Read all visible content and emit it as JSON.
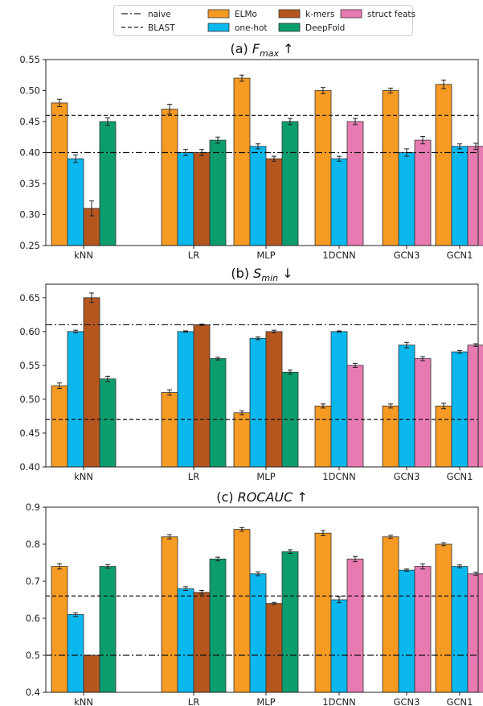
{
  "legend": [
    {
      "label": "naive",
      "kind": "line",
      "dash": "dashdot"
    },
    {
      "label": "BLAST",
      "kind": "line",
      "dash": "dashed"
    },
    {
      "label": "ELMo",
      "kind": "patch",
      "color": "#f59a23"
    },
    {
      "label": "one-hot",
      "kind": "patch",
      "color": "#0ab8ee"
    },
    {
      "label": "k-mers",
      "kind": "patch",
      "color": "#b5561f"
    },
    {
      "label": "DeepFold",
      "kind": "patch",
      "color": "#0c9d6e"
    },
    {
      "label": "struct feats",
      "kind": "patch",
      "color": "#e87ab2"
    }
  ],
  "chart_data": [
    {
      "type": "bar",
      "title": {
        "prefix": "(a)",
        "var": "F",
        "sub": "max",
        "arrow": "↑"
      },
      "categories": [
        "kNN",
        "LR",
        "MLP",
        "1DCNN",
        "GCN3",
        "GCN1"
      ],
      "ylim": [
        0.25,
        0.55
      ],
      "yticks": [
        "0.25",
        "0.30",
        "0.35",
        "0.40",
        "0.45",
        "0.50",
        "0.55"
      ],
      "ytick_values": [
        0.25,
        0.3,
        0.35,
        0.4,
        0.45,
        0.5,
        0.55
      ],
      "reference_lines": [
        {
          "name": "naive",
          "value": 0.4
        },
        {
          "name": "BLAST",
          "value": 0.46
        }
      ],
      "groups": [
        [
          {
            "s": "ELMo",
            "v": 0.48,
            "e": 0.006
          },
          {
            "s": "one-hot",
            "v": 0.39,
            "e": 0.006
          },
          {
            "s": "k-mers",
            "v": 0.31,
            "e": 0.012
          },
          {
            "s": "DeepFold",
            "v": 0.45,
            "e": 0.006
          }
        ],
        [
          {
            "s": "ELMo",
            "v": 0.47,
            "e": 0.008
          },
          {
            "s": "one-hot",
            "v": 0.4,
            "e": 0.005
          },
          {
            "s": "k-mers",
            "v": 0.4,
            "e": 0.005
          },
          {
            "s": "DeepFold",
            "v": 0.42,
            "e": 0.005
          }
        ],
        [
          {
            "s": "ELMo",
            "v": 0.52,
            "e": 0.005
          },
          {
            "s": "one-hot",
            "v": 0.41,
            "e": 0.004
          },
          {
            "s": "k-mers",
            "v": 0.39,
            "e": 0.004
          },
          {
            "s": "DeepFold",
            "v": 0.45,
            "e": 0.005
          }
        ],
        [
          {
            "s": "ELMo",
            "v": 0.5,
            "e": 0.005
          },
          {
            "s": "one-hot",
            "v": 0.39,
            "e": 0.004
          },
          {
            "s": "struct feats",
            "v": 0.45,
            "e": 0.005
          }
        ],
        [
          {
            "s": "ELMo",
            "v": 0.5,
            "e": 0.004
          },
          {
            "s": "one-hot",
            "v": 0.4,
            "e": 0.006
          },
          {
            "s": "struct feats",
            "v": 0.42,
            "e": 0.006
          }
        ],
        [
          {
            "s": "ELMo",
            "v": 0.51,
            "e": 0.007
          },
          {
            "s": "one-hot",
            "v": 0.41,
            "e": 0.004
          },
          {
            "s": "struct feats",
            "v": 0.41,
            "e": 0.005
          }
        ]
      ]
    },
    {
      "type": "bar",
      "title": {
        "prefix": "(b)",
        "var": "S",
        "sub": "min",
        "arrow": "↓"
      },
      "categories": [
        "kNN",
        "LR",
        "MLP",
        "1DCNN",
        "GCN3",
        "GCN1"
      ],
      "ylim": [
        0.4,
        0.67
      ],
      "yticks": [
        "0.40",
        "0.45",
        "0.50",
        "0.55",
        "0.60",
        "0.65"
      ],
      "ytick_values": [
        0.4,
        0.45,
        0.5,
        0.55,
        0.6,
        0.65
      ],
      "reference_lines": [
        {
          "name": "naive",
          "value": 0.61
        },
        {
          "name": "BLAST",
          "value": 0.47
        }
      ],
      "groups": [
        [
          {
            "s": "ELMo",
            "v": 0.52,
            "e": 0.004
          },
          {
            "s": "one-hot",
            "v": 0.6,
            "e": 0.002
          },
          {
            "s": "k-mers",
            "v": 0.65,
            "e": 0.007
          },
          {
            "s": "DeepFold",
            "v": 0.53,
            "e": 0.004
          }
        ],
        [
          {
            "s": "ELMo",
            "v": 0.51,
            "e": 0.004
          },
          {
            "s": "one-hot",
            "v": 0.6,
            "e": 0.001
          },
          {
            "s": "k-mers",
            "v": 0.61,
            "e": 0.001
          },
          {
            "s": "DeepFold",
            "v": 0.56,
            "e": 0.002
          }
        ],
        [
          {
            "s": "ELMo",
            "v": 0.48,
            "e": 0.003
          },
          {
            "s": "one-hot",
            "v": 0.59,
            "e": 0.002
          },
          {
            "s": "k-mers",
            "v": 0.6,
            "e": 0.002
          },
          {
            "s": "DeepFold",
            "v": 0.54,
            "e": 0.003
          }
        ],
        [
          {
            "s": "ELMo",
            "v": 0.49,
            "e": 0.003
          },
          {
            "s": "one-hot",
            "v": 0.6,
            "e": 0.001
          },
          {
            "s": "struct feats",
            "v": 0.55,
            "e": 0.003
          }
        ],
        [
          {
            "s": "ELMo",
            "v": 0.49,
            "e": 0.003
          },
          {
            "s": "one-hot",
            "v": 0.58,
            "e": 0.004
          },
          {
            "s": "struct feats",
            "v": 0.56,
            "e": 0.003
          }
        ],
        [
          {
            "s": "ELMo",
            "v": 0.49,
            "e": 0.004
          },
          {
            "s": "one-hot",
            "v": 0.57,
            "e": 0.002
          },
          {
            "s": "struct feats",
            "v": 0.58,
            "e": 0.002
          }
        ]
      ]
    },
    {
      "type": "bar",
      "title": {
        "prefix": "(c)",
        "var": "ROCAUC",
        "sub": "",
        "arrow": "↑"
      },
      "categories": [
        "kNN",
        "LR",
        "MLP",
        "1DCNN",
        "GCN3",
        "GCN1"
      ],
      "ylim": [
        0.4,
        0.9
      ],
      "yticks": [
        "0.4",
        "0.5",
        "0.6",
        "0.7",
        "0.8",
        "0.9"
      ],
      "ytick_values": [
        0.4,
        0.5,
        0.6,
        0.7,
        0.8,
        0.9
      ],
      "reference_lines": [
        {
          "name": "naive",
          "value": 0.5
        },
        {
          "name": "BLAST",
          "value": 0.66
        }
      ],
      "groups": [
        [
          {
            "s": "ELMo",
            "v": 0.74,
            "e": 0.007
          },
          {
            "s": "one-hot",
            "v": 0.61,
            "e": 0.005
          },
          {
            "s": "k-mers",
            "v": 0.5,
            "e": 0.0
          },
          {
            "s": "DeepFold",
            "v": 0.74,
            "e": 0.005
          }
        ],
        [
          {
            "s": "ELMo",
            "v": 0.82,
            "e": 0.006
          },
          {
            "s": "one-hot",
            "v": 0.68,
            "e": 0.005
          },
          {
            "s": "k-mers",
            "v": 0.67,
            "e": 0.005
          },
          {
            "s": "DeepFold",
            "v": 0.76,
            "e": 0.005
          }
        ],
        [
          {
            "s": "ELMo",
            "v": 0.84,
            "e": 0.005
          },
          {
            "s": "one-hot",
            "v": 0.72,
            "e": 0.005
          },
          {
            "s": "k-mers",
            "v": 0.64,
            "e": 0.003
          },
          {
            "s": "DeepFold",
            "v": 0.78,
            "e": 0.005
          }
        ],
        [
          {
            "s": "ELMo",
            "v": 0.83,
            "e": 0.007
          },
          {
            "s": "one-hot",
            "v": 0.65,
            "e": 0.008
          },
          {
            "s": "struct feats",
            "v": 0.76,
            "e": 0.007
          }
        ],
        [
          {
            "s": "ELMo",
            "v": 0.82,
            "e": 0.004
          },
          {
            "s": "one-hot",
            "v": 0.73,
            "e": 0.003
          },
          {
            "s": "struct feats",
            "v": 0.74,
            "e": 0.007
          }
        ],
        [
          {
            "s": "ELMo",
            "v": 0.8,
            "e": 0.004
          },
          {
            "s": "one-hot",
            "v": 0.74,
            "e": 0.004
          },
          {
            "s": "struct feats",
            "v": 0.72,
            "e": 0.004
          }
        ]
      ]
    }
  ]
}
